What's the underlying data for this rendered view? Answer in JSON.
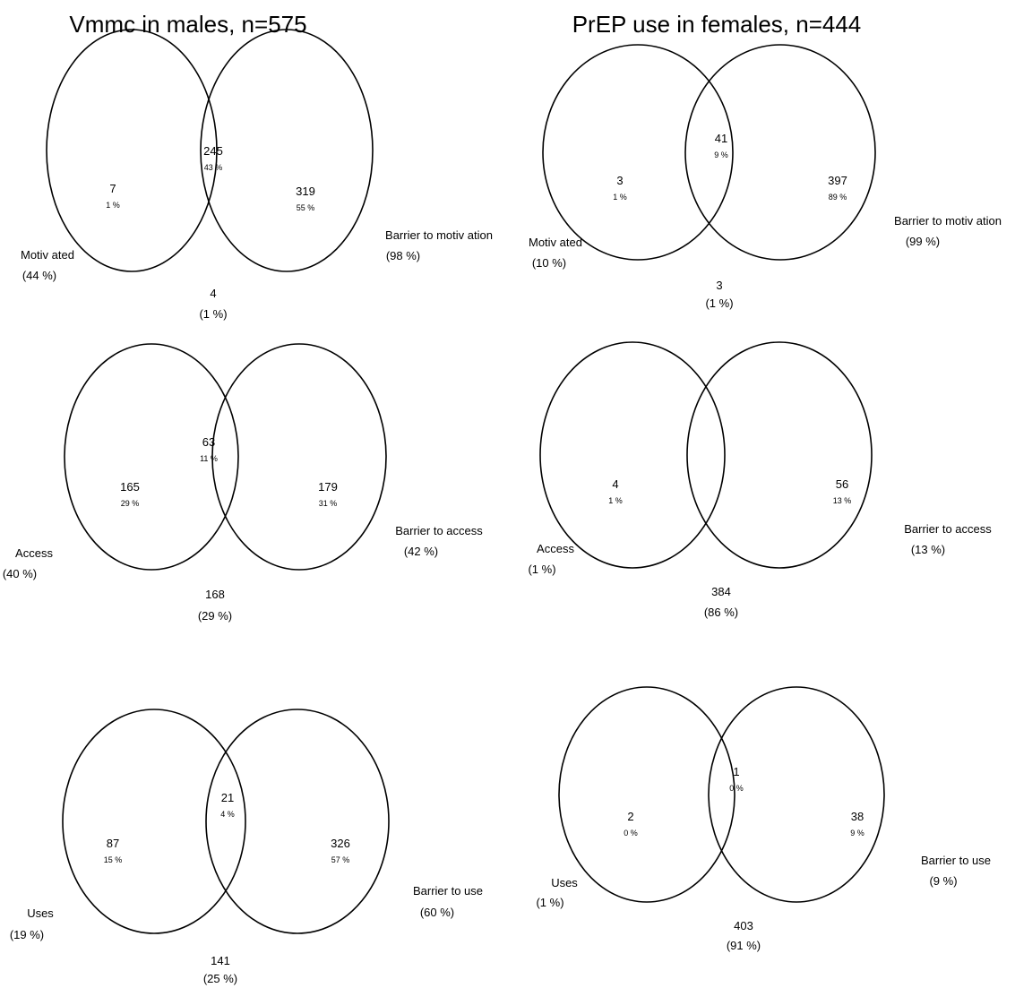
{
  "columns": [
    {
      "title": "Vmmc in males, n=575",
      "diagrams": [
        {
          "left_only": {
            "count": "7",
            "pct": "1 %"
          },
          "overlap": {
            "count": "245",
            "pct": "43 %"
          },
          "right_only": {
            "count": "319",
            "pct": "55 %"
          },
          "left_label": {
            "name": "Motiv ated",
            "pct": "(44 %)"
          },
          "right_label": {
            "name": "Barrier to motiv ation",
            "pct": "(98 %)"
          },
          "outside": {
            "count": "4",
            "pct": "(1 %)"
          }
        },
        {
          "left_only": {
            "count": "165",
            "pct": "29 %"
          },
          "overlap": {
            "count": "63",
            "pct": "11 %"
          },
          "right_only": {
            "count": "179",
            "pct": "31 %"
          },
          "left_label": {
            "name": "Access",
            "pct": "(40 %)"
          },
          "right_label": {
            "name": "Barrier to access",
            "pct": "(42 %)"
          },
          "outside": {
            "count": "168",
            "pct": "(29 %)"
          }
        },
        {
          "left_only": {
            "count": "87",
            "pct": "15 %"
          },
          "overlap": {
            "count": "21",
            "pct": "4 %"
          },
          "right_only": {
            "count": "326",
            "pct": "57 %"
          },
          "left_label": {
            "name": "Uses",
            "pct": "(19 %)"
          },
          "right_label": {
            "name": "Barrier to use",
            "pct": "(60 %)"
          },
          "outside": {
            "count": "141",
            "pct": "(25 %)"
          }
        }
      ]
    },
    {
      "title": "PrEP use in females, n=444",
      "diagrams": [
        {
          "left_only": {
            "count": "3",
            "pct": "1 %"
          },
          "overlap": {
            "count": "41",
            "pct": "9 %"
          },
          "right_only": {
            "count": "397",
            "pct": "89 %"
          },
          "left_label": {
            "name": "Motiv ated",
            "pct": "(10 %)"
          },
          "right_label": {
            "name": "Barrier to motiv ation",
            "pct": "(99 %)"
          },
          "outside": {
            "count": "3",
            "pct": "(1 %)"
          }
        },
        {
          "left_only": {
            "count": "4",
            "pct": "1 %"
          },
          "overlap": {
            "count": "",
            "pct": ""
          },
          "right_only": {
            "count": "56",
            "pct": "13 %"
          },
          "left_label": {
            "name": "Access",
            "pct": "(1 %)"
          },
          "right_label": {
            "name": "Barrier to access",
            "pct": "(13 %)"
          },
          "outside": {
            "count": "384",
            "pct": "(86 %)"
          }
        },
        {
          "left_only": {
            "count": "2",
            "pct": "0 %"
          },
          "overlap": {
            "count": "1",
            "pct": "0 %"
          },
          "right_only": {
            "count": "38",
            "pct": "9 %"
          },
          "left_label": {
            "name": "Uses",
            "pct": "(1 %)"
          },
          "right_label": {
            "name": "Barrier to use",
            "pct": "(9 %)"
          },
          "outside": {
            "count": "403",
            "pct": "(91 %)"
          }
        }
      ]
    }
  ]
}
